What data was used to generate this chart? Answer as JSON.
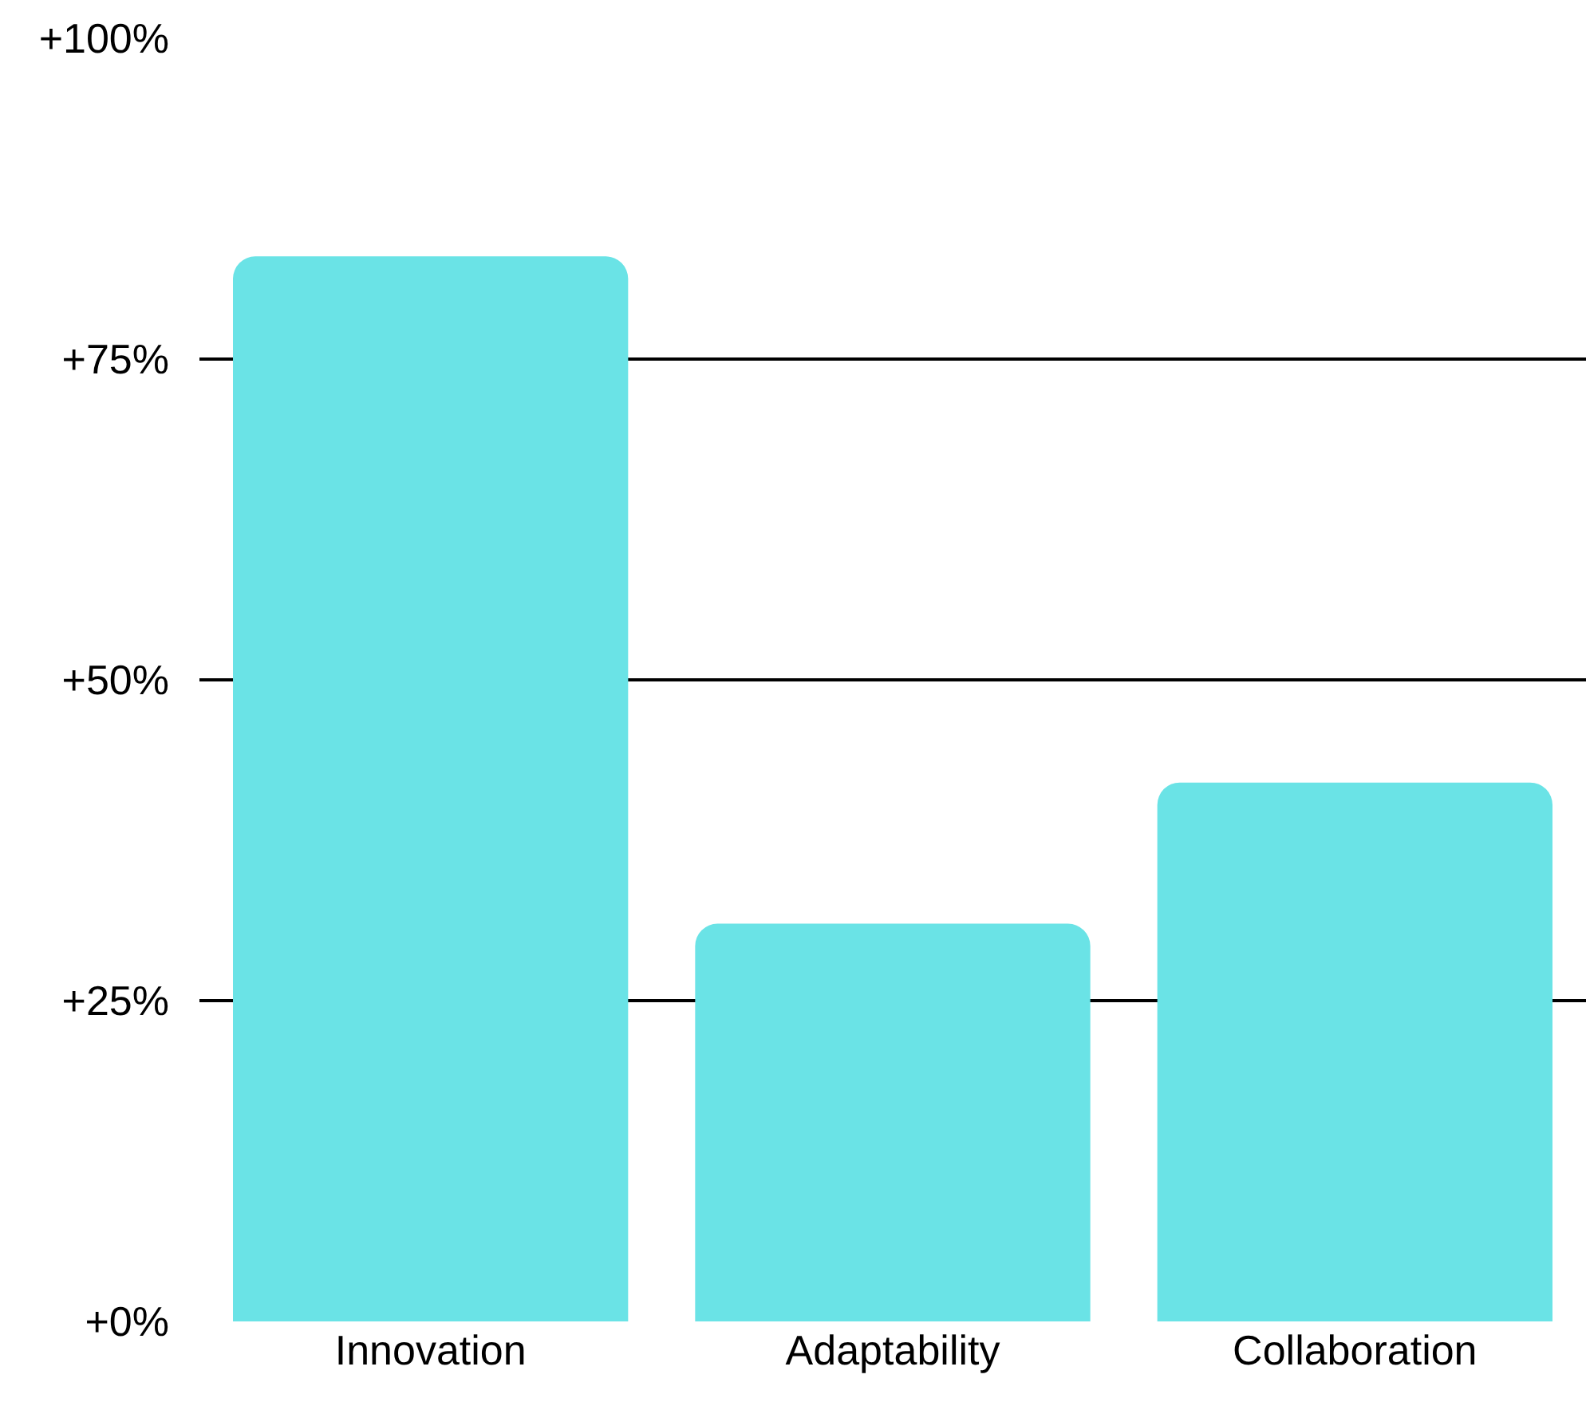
{
  "chart_data": {
    "type": "bar",
    "categories": [
      "Innovation",
      "Adaptability",
      "Collaboration"
    ],
    "values": [
      83,
      31,
      42
    ],
    "color": "#6ae3e6",
    "ylim": [
      0,
      100
    ],
    "yticks": [
      {
        "value": 0,
        "label": "+0%"
      },
      {
        "value": 25,
        "label": "+25%"
      },
      {
        "value": 50,
        "label": "+50%"
      },
      {
        "value": 75,
        "label": "+75%"
      },
      {
        "value": 100,
        "label": "+100%"
      }
    ],
    "grid": "y"
  }
}
